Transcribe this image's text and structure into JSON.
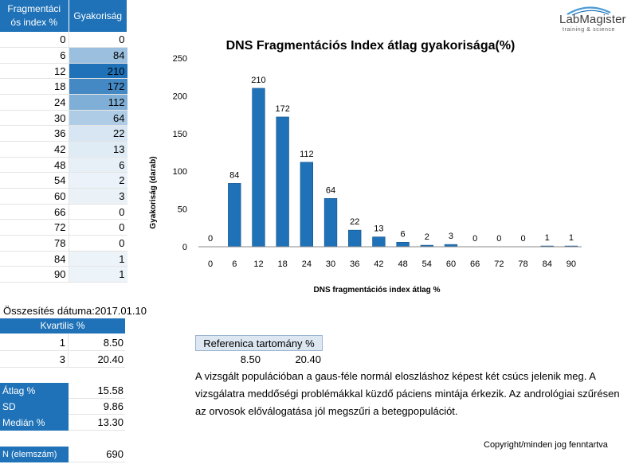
{
  "table": {
    "header_col1": "Fragmentáci ós index %",
    "header_col2": "Gyakoriság",
    "rows": [
      {
        "index": "0",
        "freq": "0"
      },
      {
        "index": "6",
        "freq": "84"
      },
      {
        "index": "12",
        "freq": "210"
      },
      {
        "index": "18",
        "freq": "172"
      },
      {
        "index": "24",
        "freq": "112"
      },
      {
        "index": "30",
        "freq": "64"
      },
      {
        "index": "36",
        "freq": "22"
      },
      {
        "index": "42",
        "freq": "13"
      },
      {
        "index": "48",
        "freq": "6"
      },
      {
        "index": "54",
        "freq": "2"
      },
      {
        "index": "60",
        "freq": "3"
      },
      {
        "index": "66",
        "freq": "0"
      },
      {
        "index": "72",
        "freq": "0"
      },
      {
        "index": "78",
        "freq": "0"
      },
      {
        "index": "84",
        "freq": "1"
      },
      {
        "index": "90",
        "freq": "1"
      }
    ]
  },
  "logo": {
    "brand": "LabMagister",
    "tagline": "training & science"
  },
  "chart_data": {
    "type": "bar",
    "title": "DNS Fragmentációs Index átlag gyakorisága(%)",
    "xlabel": "DNS fragmentációs  index átlag %",
    "ylabel": "Gyakoriság (darab)",
    "categories": [
      "0",
      "6",
      "12",
      "18",
      "24",
      "30",
      "36",
      "42",
      "48",
      "54",
      "60",
      "66",
      "72",
      "78",
      "84",
      "90"
    ],
    "values": [
      0,
      84,
      210,
      172,
      112,
      64,
      22,
      13,
      6,
      2,
      3,
      0,
      0,
      0,
      1,
      1
    ],
    "yticks": [
      0,
      50,
      100,
      150,
      200,
      250
    ],
    "ylim": [
      0,
      250
    ],
    "bar_color": "#1F72B8",
    "grid": false,
    "legend": false
  },
  "summary": {
    "date_label": "Összesítés dátuma:2017.01.10",
    "quartile_header": "Kvartilis %",
    "quartiles": [
      {
        "q": "1",
        "value": "8.50"
      },
      {
        "q": "3",
        "value": "20.40"
      }
    ],
    "stats": [
      {
        "label": "Átlag %",
        "value": "15.58"
      },
      {
        "label": "SD",
        "value": "9.86"
      },
      {
        "label": "Medián %",
        "value": "13.30"
      }
    ],
    "n_label": "N (elemszám)",
    "n_value": "690"
  },
  "reference": {
    "header": "Referenica tartomány %",
    "low": "8.50",
    "high": "20.40"
  },
  "description": "A vizsgált populációban a gaus-féle normál eloszláshoz képest két csúcs jelenik meg. A vizsgálatra meddőségi problémákkal küzdő páciens mintája érkezik. Az andrológiai szűrésen az orvosok előválogatása jól megszűri a betegpopulációt.",
  "copyright": "Copyright/minden jog fenntartva",
  "colors": {
    "accent": "#1F72B8",
    "cell_scale_max": "#1F72B8",
    "cell_scale_min": "#ffffff"
  }
}
